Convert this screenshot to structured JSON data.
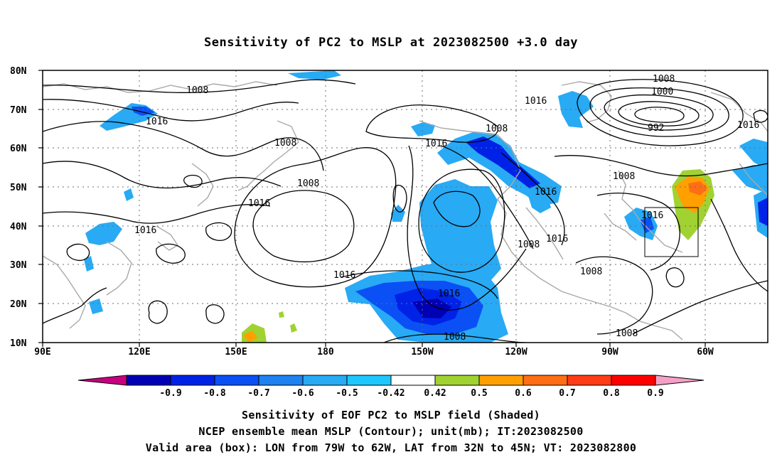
{
  "title": "Sensitivity of PC2 to MSLP at 2023082500 +3.0 day",
  "map": {
    "lat_labels": [
      "80N",
      "70N",
      "60N",
      "50N",
      "40N",
      "30N",
      "20N",
      "10N"
    ],
    "lon_labels": [
      "90E",
      "120E",
      "150E",
      "180",
      "150W",
      "120W",
      "90W",
      "60W"
    ],
    "contour_labels": [
      "1008",
      "1016",
      "1016",
      "1008",
      "1008",
      "1016",
      "1008",
      "1016",
      "1008",
      "1016",
      "1016",
      "1016",
      "1008",
      "1016",
      "1016",
      "1008",
      "1008",
      "1008",
      "1008",
      "1000",
      "992",
      "1016",
      "1008",
      "1016"
    ],
    "box_label": "Valid area box"
  },
  "colorbar": {
    "labels": [
      "-0.9",
      "-0.8",
      "-0.7",
      "-0.6",
      "-0.5",
      "-0.42",
      "0.42",
      "0.5",
      "0.6",
      "0.7",
      "0.8",
      "0.9"
    ],
    "colors": [
      "#c8007f",
      "#0000b4",
      "#0022e6",
      "#0a50f5",
      "#1e82f0",
      "#28aaf5",
      "#1ec8ff",
      "#ffffff",
      "#a0d232",
      "#ffa000",
      "#ff6e14",
      "#ff3c14",
      "#ff0000",
      "#f5a0c8"
    ]
  },
  "captions": [
    "Sensitivity of EOF PC2 to MSLP field (Shaded)",
    "NCEP ensemble mean MSLP (Contour); unit(mb); IT:2023082500",
    "Valid area (box): LON from 79W to 62W, LAT from 32N to 45N; VT: 2023082800"
  ]
}
